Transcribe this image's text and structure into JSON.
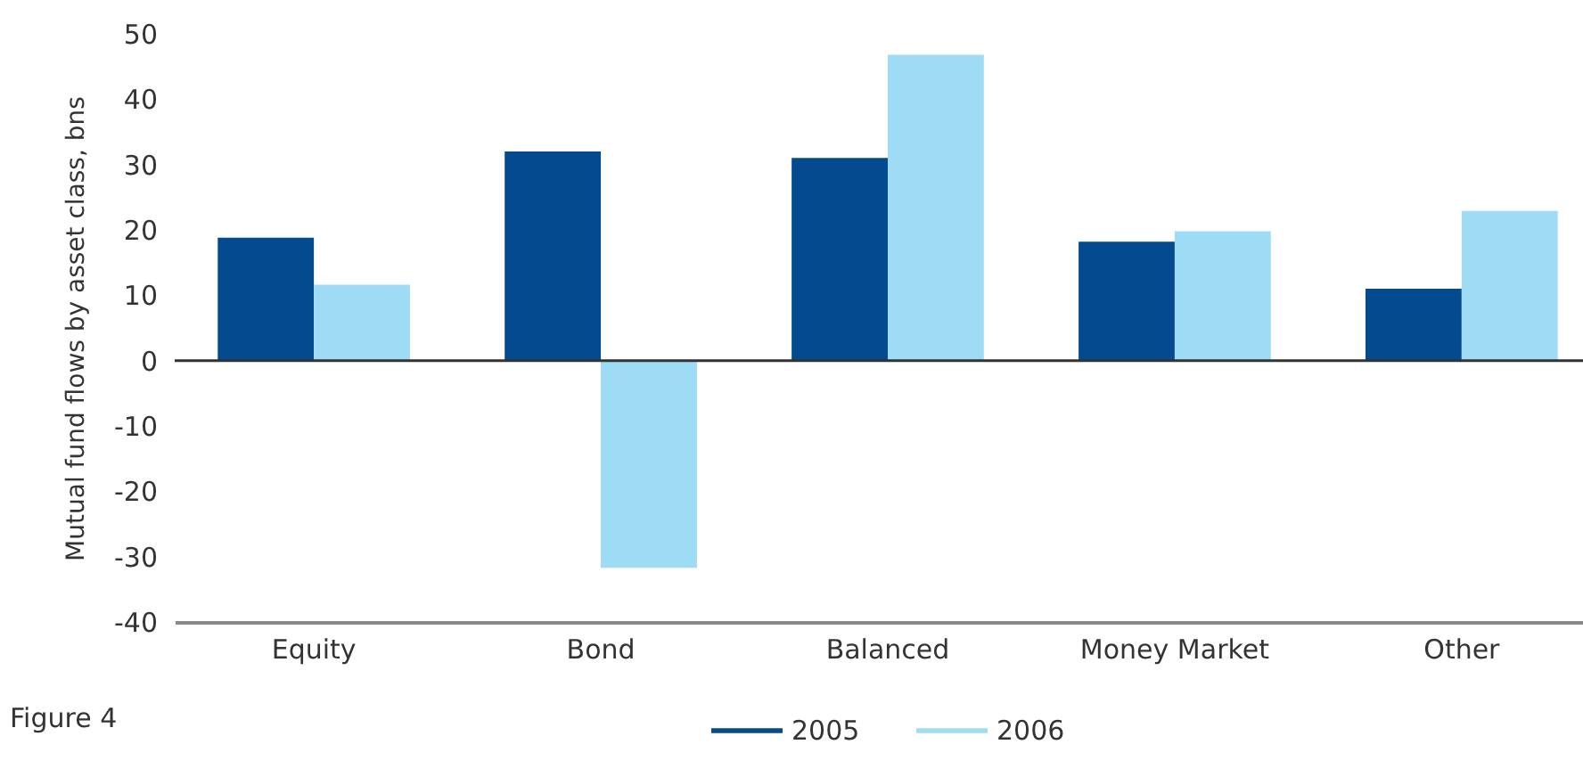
{
  "chart_data": {
    "type": "bar",
    "ylabel": "Mutual fund flows by asset class,     bns",
    "annotations": [
      "Figure 4"
    ],
    "categories": [
      "Equity",
      "Bond",
      "Balanced",
      "Money Market",
      "Other"
    ],
    "series": [
      {
        "name": "2005",
        "color": "#034a8f",
        "values": [
          18.8,
          32,
          31,
          18.2,
          11
        ]
      },
      {
        "name": "2006",
        "color": "#9edcf5",
        "values": [
          11.6,
          -31.7,
          46.8,
          19.8,
          22.9
        ]
      }
    ],
    "ylim": [
      -40,
      50
    ],
    "yticks": [
      -40,
      -30,
      -20,
      -10,
      0,
      10,
      20,
      30,
      40,
      50
    ],
    "grid": false,
    "legend": "bottom",
    "ref_lines": [
      {
        "axis": "y",
        "value": 0,
        "color": "#333333"
      }
    ]
  }
}
